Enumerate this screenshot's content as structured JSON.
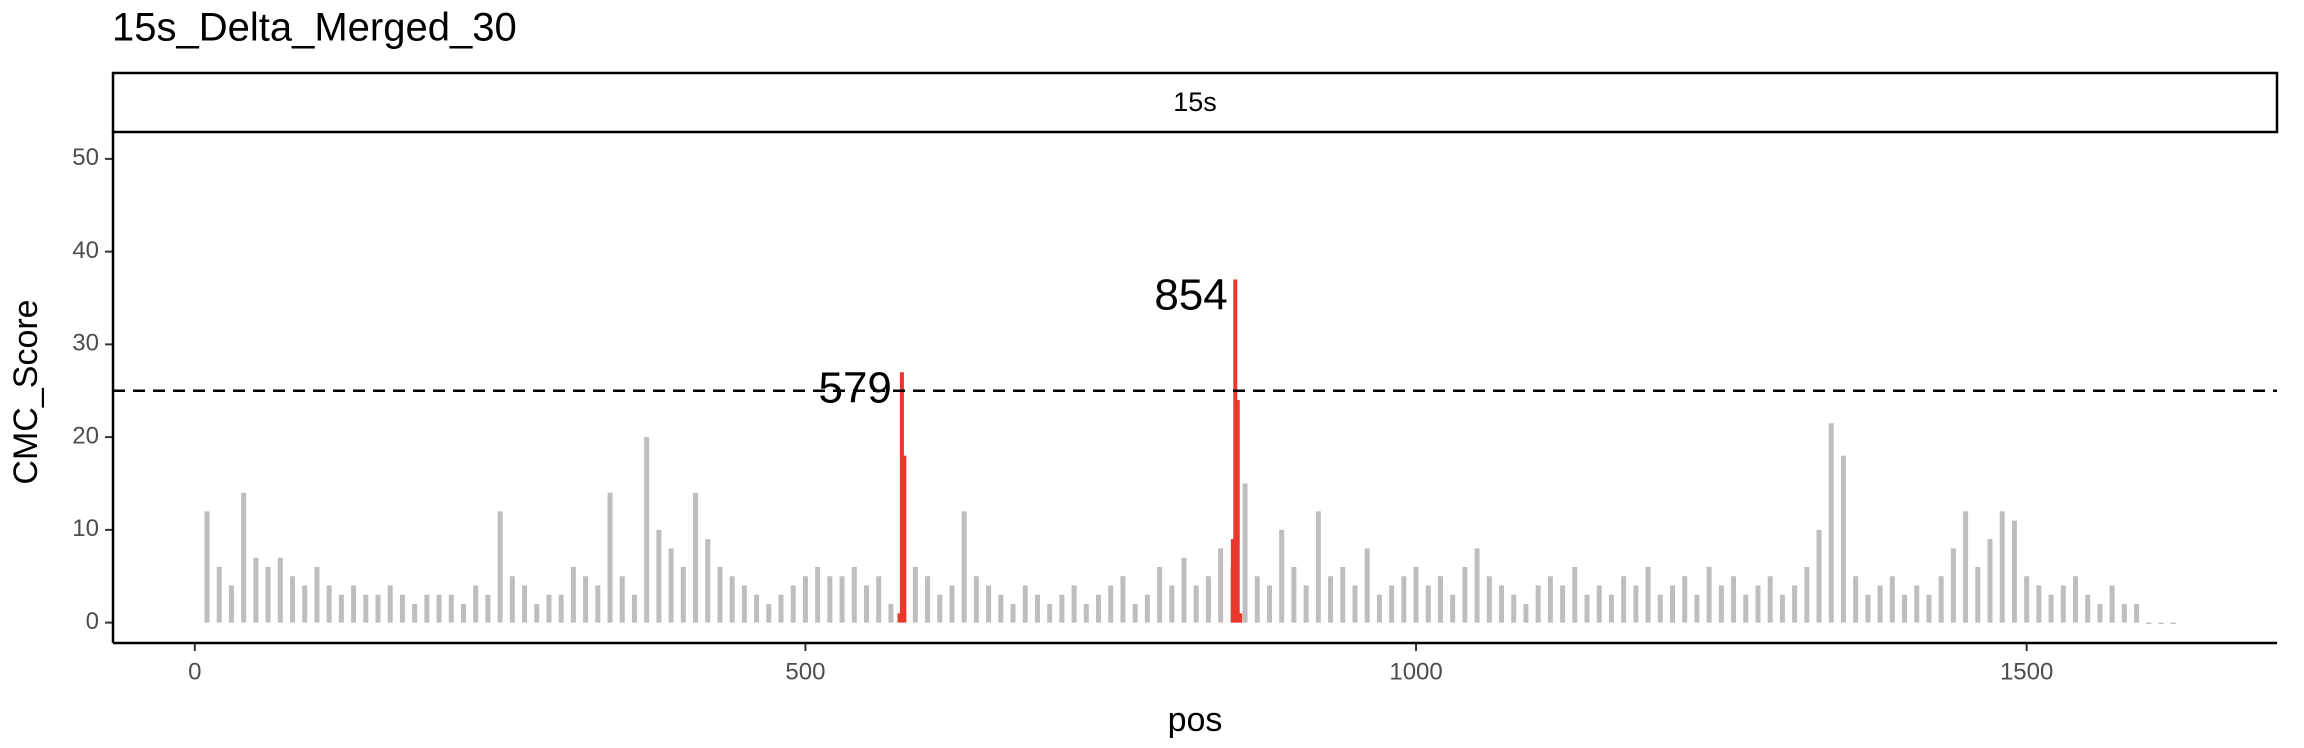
{
  "chart_data": {
    "type": "bar",
    "title": "15s_Delta_Merged_30",
    "facet_label": "15s",
    "x_label": "pos",
    "y_label": "CMC_Score",
    "xlim": [
      -67,
      1705
    ],
    "xticks": [
      0,
      500,
      1000,
      1500
    ],
    "ylim": [
      -2.2,
      52.9
    ],
    "yticks": [
      0,
      10,
      20,
      30,
      40,
      50
    ],
    "threshold": 25,
    "series": [
      {
        "color": "#bebebe",
        "x": [
          10,
          20,
          30,
          40,
          50,
          60,
          70,
          80,
          90,
          100,
          110,
          120,
          130,
          140,
          150,
          160,
          170,
          180,
          190,
          200,
          210,
          220,
          230,
          240,
          250,
          260,
          270,
          280,
          290,
          300,
          310,
          320,
          330,
          340,
          350,
          360,
          370,
          380,
          390,
          400,
          410,
          420,
          430,
          440,
          450,
          460,
          470,
          480,
          490,
          500,
          510,
          520,
          530,
          540,
          550,
          560,
          570,
          580,
          590,
          600,
          610,
          620,
          630,
          640,
          650,
          660,
          670,
          680,
          690,
          700,
          710,
          720,
          730,
          740,
          750,
          760,
          770,
          780,
          790,
          800,
          810,
          820,
          830,
          840,
          850,
          860,
          870,
          880,
          890,
          900,
          910,
          920,
          930,
          940,
          950,
          960,
          970,
          980,
          990,
          1000,
          1010,
          1020,
          1030,
          1040,
          1050,
          1060,
          1070,
          1080,
          1090,
          1100,
          1110,
          1120,
          1130,
          1140,
          1150,
          1160,
          1170,
          1180,
          1190,
          1200,
          1210,
          1220,
          1230,
          1240,
          1250,
          1260,
          1270,
          1280,
          1290,
          1300,
          1310,
          1320,
          1330,
          1340,
          1350,
          1360,
          1370,
          1380,
          1390,
          1400,
          1410,
          1420,
          1430,
          1440,
          1450,
          1460,
          1470,
          1480,
          1490,
          1500,
          1510,
          1520,
          1530,
          1540,
          1550,
          1560,
          1570,
          1580,
          1590,
          1600,
          1610,
          1620
        ],
        "values": [
          12,
          6,
          4,
          14,
          7,
          6,
          7,
          5,
          4,
          6,
          4,
          3,
          4,
          3,
          3,
          4,
          3,
          2,
          3,
          3,
          3,
          2,
          4,
          3,
          12,
          5,
          4,
          2,
          3,
          3,
          6,
          5,
          4,
          14,
          5,
          3,
          20,
          10,
          8,
          6,
          14,
          9,
          6,
          5,
          4,
          3,
          2,
          3,
          4,
          5,
          6,
          5,
          5,
          6,
          4,
          5,
          2,
          4,
          6,
          5,
          3,
          4,
          12,
          5,
          4,
          3,
          2,
          4,
          3,
          2,
          3,
          4,
          2,
          3,
          4,
          5,
          2,
          3,
          6,
          4,
          7,
          4,
          5,
          8,
          6,
          15,
          5,
          4,
          10,
          6,
          4,
          12,
          5,
          6,
          4,
          8,
          3,
          4,
          5,
          6,
          4,
          5,
          3,
          6,
          8,
          5,
          4,
          3,
          2,
          4,
          5,
          4,
          6,
          3,
          4,
          3,
          5,
          4,
          6,
          3,
          4,
          5,
          3,
          6,
          4,
          5,
          3,
          4,
          5,
          3,
          4,
          6,
          10,
          21.5,
          18,
          5,
          3,
          4,
          5,
          3,
          4,
          3,
          5,
          8,
          12,
          6,
          9,
          12,
          11,
          5,
          4,
          3,
          4,
          5,
          3,
          2,
          4,
          2,
          2,
          0,
          0,
          0
        ]
      },
      {
        "color": "#e8392d",
        "x": [
          577,
          579,
          581,
          850,
          852,
          854,
          856
        ],
        "values": [
          1,
          27,
          18,
          9,
          37,
          24,
          1
        ]
      }
    ],
    "annotations": [
      {
        "text": "579",
        "x": 579,
        "y": 25
      },
      {
        "text": "854",
        "x": 854,
        "y": 35
      }
    ]
  }
}
